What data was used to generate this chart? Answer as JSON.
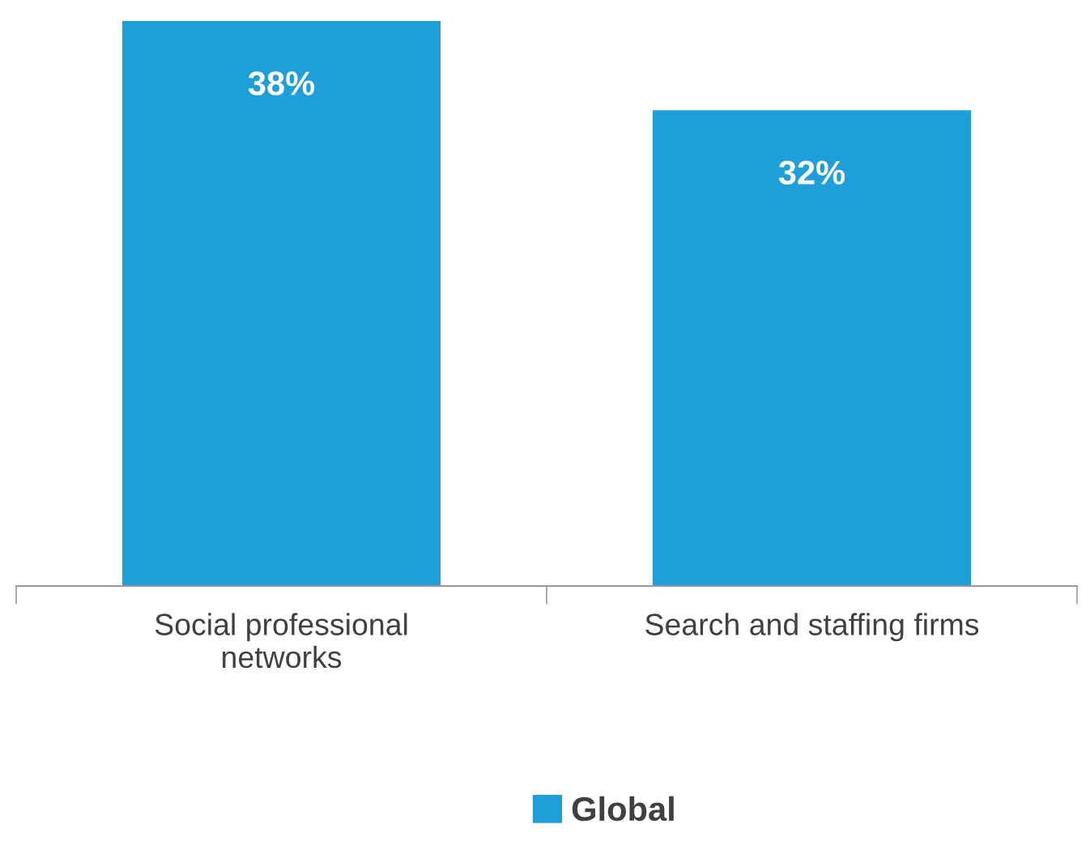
{
  "chart_data": {
    "type": "bar",
    "categories": [
      "Social professional\nnetworks",
      "Search and staffing firms"
    ],
    "series": [
      {
        "name": "Global",
        "color": "#1f9fda",
        "values": [
          38,
          32
        ],
        "value_labels": [
          "38%",
          "32%"
        ]
      }
    ],
    "legend": "bottom",
    "grid": false
  }
}
